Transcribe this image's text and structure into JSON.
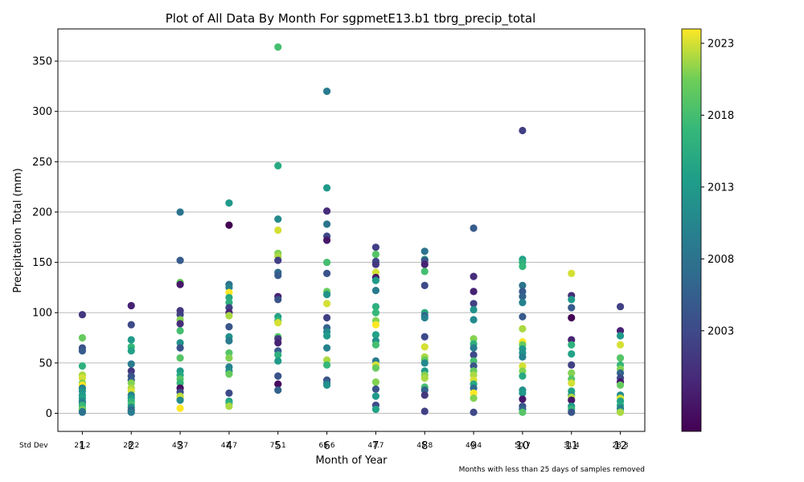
{
  "chart_data": {
    "type": "scatter",
    "title": "Plot of All Data By Month For sgpmetE13.b1 tbrg_precip_total",
    "xlabel": "Month of Year",
    "ylabel": "Precipitation Total (mm)",
    "footnote": "Months with less than 25 days of samples removed",
    "std_dev_label": "Std Dev",
    "xlim": [
      0.5,
      12.5
    ],
    "ylim": [
      -18,
      382
    ],
    "x_ticks": [
      "1",
      "2",
      "3",
      "4",
      "5",
      "6",
      "7",
      "8",
      "9",
      "10",
      "11",
      "12"
    ],
    "y_ticks": [
      0,
      50,
      100,
      150,
      200,
      250,
      300,
      350
    ],
    "y_tick_labels": [
      "0",
      "50",
      "100",
      "150",
      "200",
      "250",
      "300",
      "350"
    ],
    "grid": "horizontal",
    "std_dev": [
      "21.2",
      "28.2",
      "45.7",
      "47.7",
      "75.1",
      "65.6",
      "47.7",
      "45.8",
      "40.4",
      "50.7",
      "31.4",
      "28.3"
    ],
    "colorbar": {
      "colormap": "viridis",
      "range": [
        1996,
        2024
      ],
      "ticks": [
        2003,
        2008,
        2013,
        2018,
        2023
      ],
      "tick_labels": [
        "2003",
        "2008",
        "2013",
        "2018",
        "2023"
      ]
    },
    "points": [
      {
        "m": 1,
        "v": 98,
        "y": 2001
      },
      {
        "m": 1,
        "v": 65,
        "y": 2004
      },
      {
        "m": 1,
        "v": 62,
        "y": 2005
      },
      {
        "m": 1,
        "v": 75,
        "y": 2020
      },
      {
        "m": 1,
        "v": 47,
        "y": 2016
      },
      {
        "m": 1,
        "v": 38,
        "y": 2022
      },
      {
        "m": 1,
        "v": 35,
        "y": 2023
      },
      {
        "m": 1,
        "v": 30,
        "y": 2021
      },
      {
        "m": 1,
        "v": 28,
        "y": 2024
      },
      {
        "m": 1,
        "v": 25,
        "y": 2010
      },
      {
        "m": 1,
        "v": 22,
        "y": 2012
      },
      {
        "m": 1,
        "v": 18,
        "y": 2013
      },
      {
        "m": 1,
        "v": 15,
        "y": 2014
      },
      {
        "m": 1,
        "v": 12,
        "y": 2011
      },
      {
        "m": 1,
        "v": 10,
        "y": 2009
      },
      {
        "m": 1,
        "v": 8,
        "y": 2017
      },
      {
        "m": 1,
        "v": 5,
        "y": 2018
      },
      {
        "m": 1,
        "v": 3,
        "y": 2022
      },
      {
        "m": 1,
        "v": 2,
        "y": 2012
      },
      {
        "m": 1,
        "v": 1,
        "y": 2008
      },
      {
        "m": 2,
        "v": 107,
        "y": 1999
      },
      {
        "m": 2,
        "v": 88,
        "y": 2003
      },
      {
        "m": 2,
        "v": 73,
        "y": 2013
      },
      {
        "m": 2,
        "v": 66,
        "y": 2017
      },
      {
        "m": 2,
        "v": 62,
        "y": 2014
      },
      {
        "m": 2,
        "v": 49,
        "y": 2009
      },
      {
        "m": 2,
        "v": 42,
        "y": 2001
      },
      {
        "m": 2,
        "v": 37,
        "y": 2004
      },
      {
        "m": 2,
        "v": 33,
        "y": 2005
      },
      {
        "m": 2,
        "v": 30,
        "y": 2021
      },
      {
        "m": 2,
        "v": 25,
        "y": 2022
      },
      {
        "m": 2,
        "v": 22,
        "y": 2023
      },
      {
        "m": 2,
        "v": 18,
        "y": 2010
      },
      {
        "m": 2,
        "v": 15,
        "y": 2013
      },
      {
        "m": 2,
        "v": 12,
        "y": 2016
      },
      {
        "m": 2,
        "v": 9,
        "y": 2018
      },
      {
        "m": 2,
        "v": 6,
        "y": 2011
      },
      {
        "m": 2,
        "v": 3,
        "y": 2006
      },
      {
        "m": 2,
        "v": 1,
        "y": 2009
      },
      {
        "m": 3,
        "v": 200,
        "y": 2008
      },
      {
        "m": 3,
        "v": 152,
        "y": 2005
      },
      {
        "m": 3,
        "v": 130,
        "y": 2020
      },
      {
        "m": 3,
        "v": 128,
        "y": 1998
      },
      {
        "m": 3,
        "v": 102,
        "y": 2001
      },
      {
        "m": 3,
        "v": 98,
        "y": 2002
      },
      {
        "m": 3,
        "v": 93,
        "y": 2021
      },
      {
        "m": 3,
        "v": 89,
        "y": 2000
      },
      {
        "m": 3,
        "v": 82,
        "y": 2018
      },
      {
        "m": 3,
        "v": 70,
        "y": 2012
      },
      {
        "m": 3,
        "v": 65,
        "y": 2004
      },
      {
        "m": 3,
        "v": 55,
        "y": 2019
      },
      {
        "m": 3,
        "v": 42,
        "y": 2013
      },
      {
        "m": 3,
        "v": 38,
        "y": 2015
      },
      {
        "m": 3,
        "v": 34,
        "y": 2019
      },
      {
        "m": 3,
        "v": 30,
        "y": 2017
      },
      {
        "m": 3,
        "v": 25,
        "y": 1997
      },
      {
        "m": 3,
        "v": 21,
        "y": 2003
      },
      {
        "m": 3,
        "v": 17,
        "y": 2022
      },
      {
        "m": 3,
        "v": 15,
        "y": 2023
      },
      {
        "m": 3,
        "v": 13,
        "y": 2011
      },
      {
        "m": 3,
        "v": 5,
        "y": 2024
      },
      {
        "m": 4,
        "v": 209,
        "y": 2013
      },
      {
        "m": 4,
        "v": 187,
        "y": 1996
      },
      {
        "m": 4,
        "v": 128,
        "y": 2008
      },
      {
        "m": 4,
        "v": 125,
        "y": 2010
      },
      {
        "m": 4,
        "v": 120,
        "y": 2024
      },
      {
        "m": 4,
        "v": 115,
        "y": 2015
      },
      {
        "m": 4,
        "v": 110,
        "y": 2016
      },
      {
        "m": 4,
        "v": 105,
        "y": 2002
      },
      {
        "m": 4,
        "v": 100,
        "y": 1999
      },
      {
        "m": 4,
        "v": 97,
        "y": 2022
      },
      {
        "m": 4,
        "v": 86,
        "y": 2004
      },
      {
        "m": 4,
        "v": 76,
        "y": 2012
      },
      {
        "m": 4,
        "v": 72,
        "y": 2009
      },
      {
        "m": 4,
        "v": 60,
        "y": 2019
      },
      {
        "m": 4,
        "v": 55,
        "y": 2021
      },
      {
        "m": 4,
        "v": 46,
        "y": 2010
      },
      {
        "m": 4,
        "v": 42,
        "y": 2011
      },
      {
        "m": 4,
        "v": 39,
        "y": 2020
      },
      {
        "m": 4,
        "v": 20,
        "y": 2003
      },
      {
        "m": 4,
        "v": 12,
        "y": 2014
      },
      {
        "m": 4,
        "v": 10,
        "y": 2016
      },
      {
        "m": 4,
        "v": 7,
        "y": 2022
      },
      {
        "m": 5,
        "v": 364,
        "y": 2018
      },
      {
        "m": 5,
        "v": 246,
        "y": 2015
      },
      {
        "m": 5,
        "v": 193,
        "y": 2011
      },
      {
        "m": 5,
        "v": 182,
        "y": 2023
      },
      {
        "m": 5,
        "v": 159,
        "y": 2021
      },
      {
        "m": 5,
        "v": 156,
        "y": 2022
      },
      {
        "m": 5,
        "v": 152,
        "y": 2002
      },
      {
        "m": 5,
        "v": 140,
        "y": 2007
      },
      {
        "m": 5,
        "v": 137,
        "y": 2005
      },
      {
        "m": 5,
        "v": 116,
        "y": 1999
      },
      {
        "m": 5,
        "v": 113,
        "y": 2004
      },
      {
        "m": 5,
        "v": 96,
        "y": 2014
      },
      {
        "m": 5,
        "v": 92,
        "y": 2017
      },
      {
        "m": 5,
        "v": 90,
        "y": 2023
      },
      {
        "m": 5,
        "v": 76,
        "y": 2019
      },
      {
        "m": 5,
        "v": 74,
        "y": 2001
      },
      {
        "m": 5,
        "v": 70,
        "y": 1999
      },
      {
        "m": 5,
        "v": 62,
        "y": 2005
      },
      {
        "m": 5,
        "v": 58,
        "y": 2016
      },
      {
        "m": 5,
        "v": 52,
        "y": 2013
      },
      {
        "m": 5,
        "v": 37,
        "y": 2004
      },
      {
        "m": 5,
        "v": 29,
        "y": 1997
      },
      {
        "m": 5,
        "v": 23,
        "y": 2006
      },
      {
        "m": 6,
        "v": 320,
        "y": 2009
      },
      {
        "m": 6,
        "v": 224,
        "y": 2013
      },
      {
        "m": 6,
        "v": 201,
        "y": 2000
      },
      {
        "m": 6,
        "v": 188,
        "y": 2008
      },
      {
        "m": 6,
        "v": 176,
        "y": 2003
      },
      {
        "m": 6,
        "v": 172,
        "y": 1998
      },
      {
        "m": 6,
        "v": 150,
        "y": 2018
      },
      {
        "m": 6,
        "v": 139,
        "y": 2004
      },
      {
        "m": 6,
        "v": 121,
        "y": 2020
      },
      {
        "m": 6,
        "v": 118,
        "y": 2012
      },
      {
        "m": 6,
        "v": 109,
        "y": 2023
      },
      {
        "m": 6,
        "v": 95,
        "y": 2002
      },
      {
        "m": 6,
        "v": 85,
        "y": 2006
      },
      {
        "m": 6,
        "v": 81,
        "y": 2011
      },
      {
        "m": 6,
        "v": 77,
        "y": 2013
      },
      {
        "m": 6,
        "v": 65,
        "y": 2010
      },
      {
        "m": 6,
        "v": 53,
        "y": 2022
      },
      {
        "m": 6,
        "v": 48,
        "y": 2017
      },
      {
        "m": 6,
        "v": 33,
        "y": 2004
      },
      {
        "m": 6,
        "v": 30,
        "y": 2007
      },
      {
        "m": 6,
        "v": 28,
        "y": 2012
      },
      {
        "m": 7,
        "v": 165,
        "y": 2002
      },
      {
        "m": 7,
        "v": 158,
        "y": 2019
      },
      {
        "m": 7,
        "v": 151,
        "y": 2003
      },
      {
        "m": 7,
        "v": 148,
        "y": 2001
      },
      {
        "m": 7,
        "v": 140,
        "y": 2023
      },
      {
        "m": 7,
        "v": 135,
        "y": 1998
      },
      {
        "m": 7,
        "v": 132,
        "y": 2013
      },
      {
        "m": 7,
        "v": 122,
        "y": 2009
      },
      {
        "m": 7,
        "v": 106,
        "y": 2016
      },
      {
        "m": 7,
        "v": 100,
        "y": 2017
      },
      {
        "m": 7,
        "v": 92,
        "y": 2021
      },
      {
        "m": 7,
        "v": 88,
        "y": 2024
      },
      {
        "m": 7,
        "v": 78,
        "y": 2014
      },
      {
        "m": 7,
        "v": 72,
        "y": 2012
      },
      {
        "m": 7,
        "v": 68,
        "y": 2018
      },
      {
        "m": 7,
        "v": 52,
        "y": 2009
      },
      {
        "m": 7,
        "v": 48,
        "y": 2023
      },
      {
        "m": 7,
        "v": 45,
        "y": 2020
      },
      {
        "m": 7,
        "v": 31,
        "y": 2021
      },
      {
        "m": 7,
        "v": 24,
        "y": 2004
      },
      {
        "m": 7,
        "v": 17,
        "y": 2013
      },
      {
        "m": 7,
        "v": 8,
        "y": 2003
      },
      {
        "m": 7,
        "v": 4,
        "y": 2014
      },
      {
        "m": 8,
        "v": 161,
        "y": 2008
      },
      {
        "m": 8,
        "v": 153,
        "y": 2016
      },
      {
        "m": 8,
        "v": 152,
        "y": 2004
      },
      {
        "m": 8,
        "v": 148,
        "y": 1999
      },
      {
        "m": 8,
        "v": 141,
        "y": 2018
      },
      {
        "m": 8,
        "v": 127,
        "y": 2003
      },
      {
        "m": 8,
        "v": 100,
        "y": 2015
      },
      {
        "m": 8,
        "v": 97,
        "y": 2005
      },
      {
        "m": 8,
        "v": 95,
        "y": 2010
      },
      {
        "m": 8,
        "v": 76,
        "y": 2003
      },
      {
        "m": 8,
        "v": 66,
        "y": 2023
      },
      {
        "m": 8,
        "v": 56,
        "y": 2022
      },
      {
        "m": 8,
        "v": 53,
        "y": 2020
      },
      {
        "m": 8,
        "v": 50,
        "y": 2011
      },
      {
        "m": 8,
        "v": 42,
        "y": 2013
      },
      {
        "m": 8,
        "v": 38,
        "y": 2021
      },
      {
        "m": 8,
        "v": 35,
        "y": 2022
      },
      {
        "m": 8,
        "v": 26,
        "y": 2018
      },
      {
        "m": 8,
        "v": 23,
        "y": 2006
      },
      {
        "m": 8,
        "v": 18,
        "y": 2001
      },
      {
        "m": 8,
        "v": 2,
        "y": 2002
      },
      {
        "m": 9,
        "v": 184,
        "y": 2005
      },
      {
        "m": 9,
        "v": 136,
        "y": 2000
      },
      {
        "m": 9,
        "v": 121,
        "y": 1999
      },
      {
        "m": 9,
        "v": 109,
        "y": 2002
      },
      {
        "m": 9,
        "v": 103,
        "y": 2012
      },
      {
        "m": 9,
        "v": 93,
        "y": 2011
      },
      {
        "m": 9,
        "v": 74,
        "y": 2021
      },
      {
        "m": 9,
        "v": 69,
        "y": 2016
      },
      {
        "m": 9,
        "v": 65,
        "y": 2009
      },
      {
        "m": 9,
        "v": 58,
        "y": 2003
      },
      {
        "m": 9,
        "v": 52,
        "y": 2018
      },
      {
        "m": 9,
        "v": 47,
        "y": 2004
      },
      {
        "m": 9,
        "v": 42,
        "y": 2020
      },
      {
        "m": 9,
        "v": 38,
        "y": 2022
      },
      {
        "m": 9,
        "v": 33,
        "y": 2023
      },
      {
        "m": 9,
        "v": 29,
        "y": 2015
      },
      {
        "m": 9,
        "v": 25,
        "y": 2007
      },
      {
        "m": 9,
        "v": 20,
        "y": 2024
      },
      {
        "m": 9,
        "v": 15,
        "y": 2021
      },
      {
        "m": 9,
        "v": 1,
        "y": 2003
      },
      {
        "m": 10,
        "v": 281,
        "y": 2002
      },
      {
        "m": 10,
        "v": 153,
        "y": 2014
      },
      {
        "m": 10,
        "v": 150,
        "y": 2016
      },
      {
        "m": 10,
        "v": 146,
        "y": 2017
      },
      {
        "m": 10,
        "v": 127,
        "y": 2008
      },
      {
        "m": 10,
        "v": 121,
        "y": 2005
      },
      {
        "m": 10,
        "v": 116,
        "y": 2006
      },
      {
        "m": 10,
        "v": 110,
        "y": 2010
      },
      {
        "m": 10,
        "v": 96,
        "y": 2005
      },
      {
        "m": 10,
        "v": 84,
        "y": 2022
      },
      {
        "m": 10,
        "v": 71,
        "y": 2024
      },
      {
        "m": 10,
        "v": 68,
        "y": 2020
      },
      {
        "m": 10,
        "v": 64,
        "y": 2013
      },
      {
        "m": 10,
        "v": 60,
        "y": 2012
      },
      {
        "m": 10,
        "v": 56,
        "y": 2010
      },
      {
        "m": 10,
        "v": 47,
        "y": 2023
      },
      {
        "m": 10,
        "v": 42,
        "y": 2021
      },
      {
        "m": 10,
        "v": 37,
        "y": 2015
      },
      {
        "m": 10,
        "v": 23,
        "y": 2012
      },
      {
        "m": 10,
        "v": 20,
        "y": 2013
      },
      {
        "m": 10,
        "v": 14,
        "y": 1998
      },
      {
        "m": 10,
        "v": 7,
        "y": 2004
      },
      {
        "m": 10,
        "v": 4,
        "y": 2006
      },
      {
        "m": 10,
        "v": 1,
        "y": 2019
      },
      {
        "m": 11,
        "v": 139,
        "y": 2023
      },
      {
        "m": 11,
        "v": 117,
        "y": 2000
      },
      {
        "m": 11,
        "v": 113,
        "y": 2013
      },
      {
        "m": 11,
        "v": 105,
        "y": 2005
      },
      {
        "m": 11,
        "v": 95,
        "y": 1996
      },
      {
        "m": 11,
        "v": 73,
        "y": 1999
      },
      {
        "m": 11,
        "v": 68,
        "y": 2016
      },
      {
        "m": 11,
        "v": 59,
        "y": 2014
      },
      {
        "m": 11,
        "v": 48,
        "y": 2002
      },
      {
        "m": 11,
        "v": 40,
        "y": 2021
      },
      {
        "m": 11,
        "v": 34,
        "y": 2019
      },
      {
        "m": 11,
        "v": 30,
        "y": 2023
      },
      {
        "m": 11,
        "v": 22,
        "y": 2014
      },
      {
        "m": 11,
        "v": 18,
        "y": 2012
      },
      {
        "m": 11,
        "v": 16,
        "y": 2022
      },
      {
        "m": 11,
        "v": 13,
        "y": 1998
      },
      {
        "m": 11,
        "v": 7,
        "y": 2013
      },
      {
        "m": 11,
        "v": 4,
        "y": 2017
      },
      {
        "m": 11,
        "v": 1,
        "y": 2004
      },
      {
        "m": 12,
        "v": 106,
        "y": 2002
      },
      {
        "m": 12,
        "v": 82,
        "y": 1999
      },
      {
        "m": 12,
        "v": 77,
        "y": 2013
      },
      {
        "m": 12,
        "v": 68,
        "y": 2023
      },
      {
        "m": 12,
        "v": 55,
        "y": 2019
      },
      {
        "m": 12,
        "v": 48,
        "y": 2017
      },
      {
        "m": 12,
        "v": 44,
        "y": 2021
      },
      {
        "m": 12,
        "v": 40,
        "y": 2006
      },
      {
        "m": 12,
        "v": 35,
        "y": 2003
      },
      {
        "m": 12,
        "v": 31,
        "y": 1998
      },
      {
        "m": 12,
        "v": 28,
        "y": 2020
      },
      {
        "m": 12,
        "v": 18,
        "y": 2011
      },
      {
        "m": 12,
        "v": 15,
        "y": 2023
      },
      {
        "m": 12,
        "v": 12,
        "y": 2014
      },
      {
        "m": 12,
        "v": 8,
        "y": 2015
      },
      {
        "m": 12,
        "v": 5,
        "y": 2010
      },
      {
        "m": 12,
        "v": 2,
        "y": 2012
      },
      {
        "m": 12,
        "v": 1,
        "y": 2022
      }
    ]
  }
}
